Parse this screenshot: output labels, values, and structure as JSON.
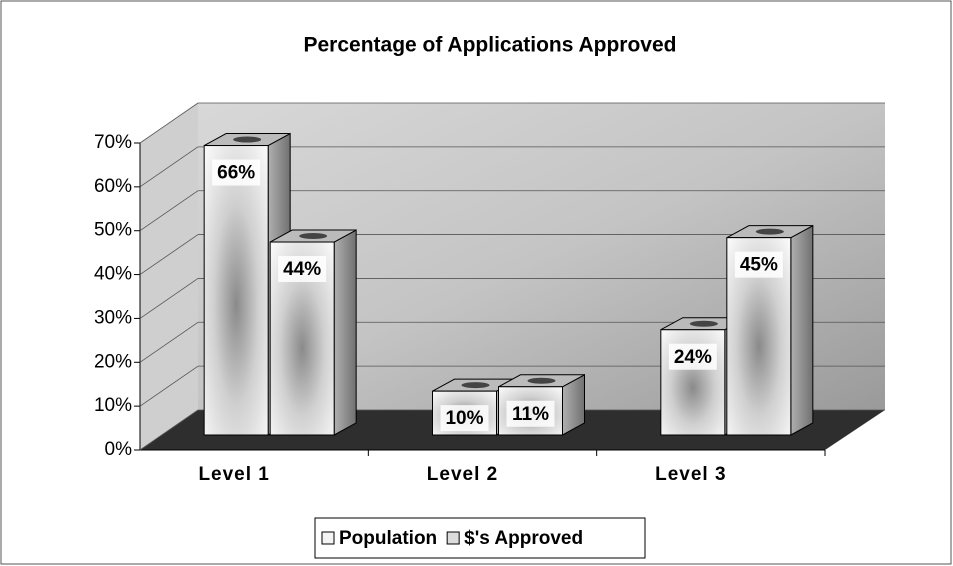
{
  "chart_data": {
    "type": "bar3d",
    "title": "Percentage of Applications Approved",
    "categories": [
      "Level 1",
      "Level 2",
      "Level 3"
    ],
    "series": [
      {
        "name": "Population",
        "color": "#f4f4f4",
        "values": [
          66,
          10,
          24
        ],
        "value_labels": [
          "66%",
          "10%",
          "24%"
        ]
      },
      {
        "name": "$'s Approved",
        "color": "#dcdcdc",
        "values": [
          44,
          11,
          45
        ],
        "value_labels": [
          "44%",
          "11%",
          "45%"
        ]
      }
    ],
    "ylim": [
      0,
      70
    ],
    "yticks": [
      {
        "value": 0,
        "label": "0%"
      },
      {
        "value": 10,
        "label": "10%"
      },
      {
        "value": 20,
        "label": "20%"
      },
      {
        "value": 30,
        "label": "30%"
      },
      {
        "value": 40,
        "label": "40%"
      },
      {
        "value": 50,
        "label": "50%"
      },
      {
        "value": 60,
        "label": "60%"
      },
      {
        "value": 70,
        "label": "70%"
      }
    ],
    "grid": true,
    "legend": "bottom"
  }
}
